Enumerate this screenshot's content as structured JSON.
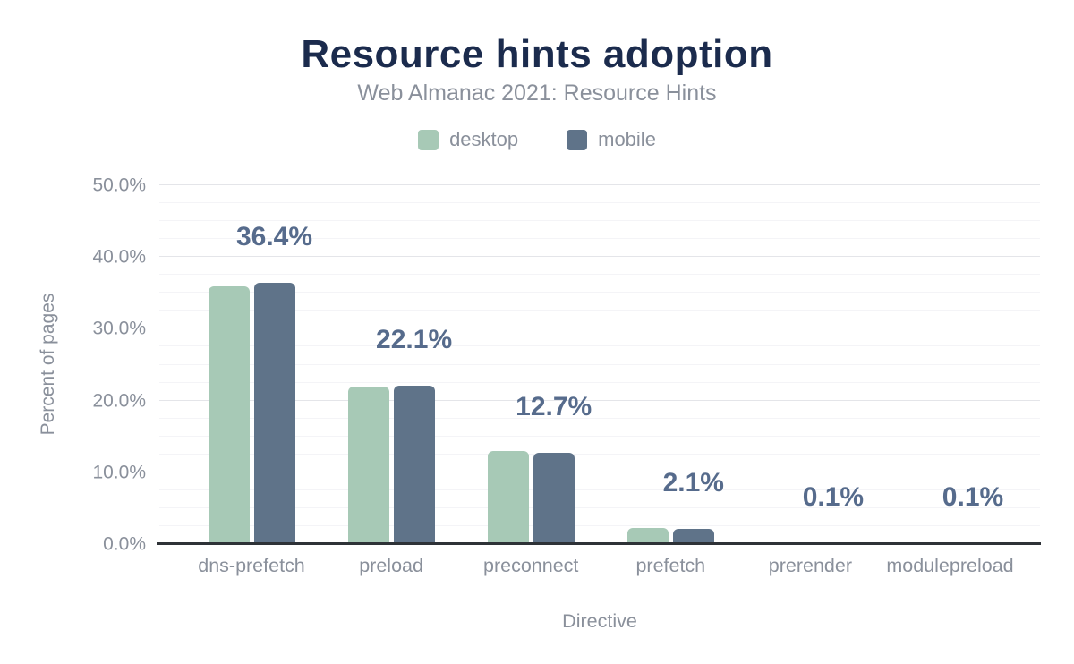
{
  "chart_data": {
    "type": "bar",
    "title": "Resource hints adoption",
    "subtitle": "Web Almanac 2021: Resource Hints",
    "xlabel": "Directive",
    "ylabel": "Percent of pages",
    "categories": [
      "dns-prefetch",
      "preload",
      "preconnect",
      "prefetch",
      "prerender",
      "modulepreload"
    ],
    "series": [
      {
        "name": "desktop",
        "color": "#a7c9b6",
        "values": [
          35.9,
          21.9,
          13.0,
          2.3,
          0.1,
          0.1
        ]
      },
      {
        "name": "mobile",
        "color": "#5f7389",
        "values": [
          36.4,
          22.1,
          12.7,
          2.1,
          0.1,
          0.1
        ]
      }
    ],
    "data_labels": {
      "series": "mobile",
      "values": [
        "36.4%",
        "22.1%",
        "12.7%",
        "2.1%",
        "0.1%",
        "0.1%"
      ]
    },
    "ylim": [
      0,
      50
    ],
    "yticks": [
      "0.0%",
      "10.0%",
      "20.0%",
      "30.0%",
      "40.0%",
      "50.0%"
    ],
    "grid": {
      "major_step": 10,
      "minor_step": 2.5,
      "horizontal": true
    },
    "legend_position": "top",
    "colors": {
      "title": "#1b2b4d",
      "subtitle_text": "#8a909b",
      "data_label": "#566b8c",
      "axis_line": "#2e3237",
      "major_grid": "#e4e5e9",
      "minor_grid": "#f4f4f7"
    }
  }
}
